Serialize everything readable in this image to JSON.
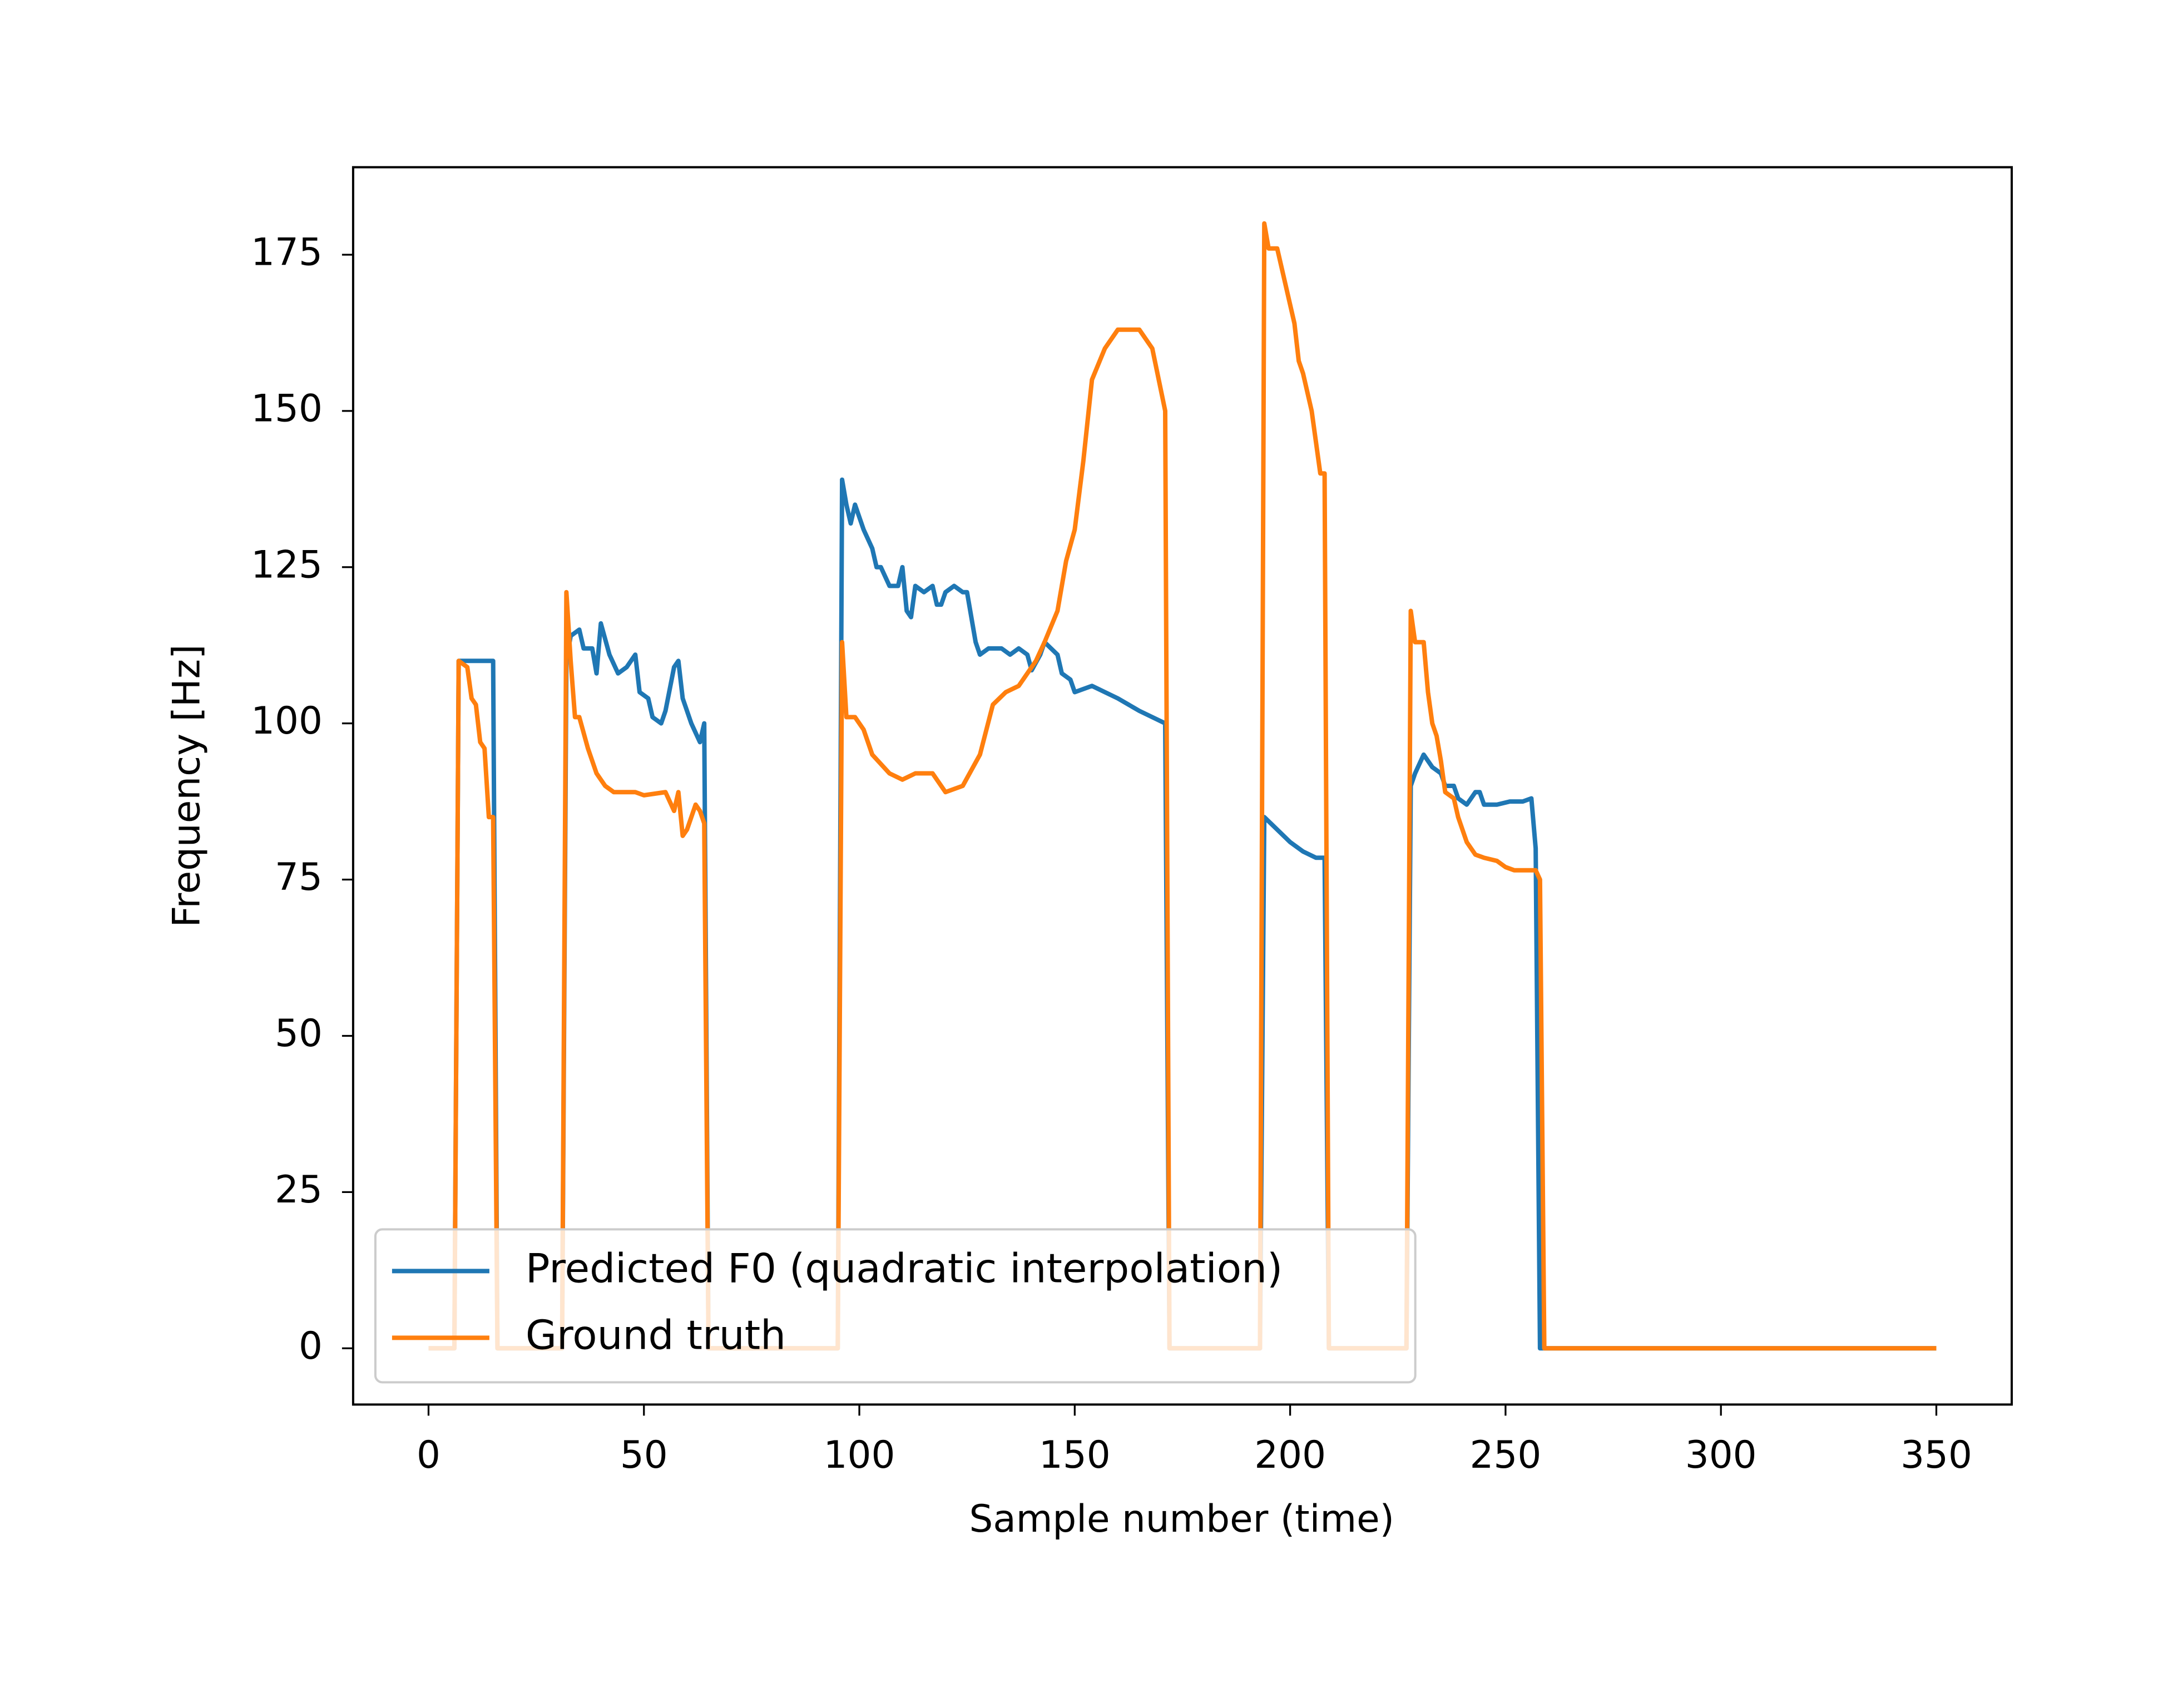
{
  "chart_data": {
    "type": "line",
    "xlabel": "Sample number (time)",
    "ylabel": "Frequency [Hz]",
    "xlim": [
      -17.5,
      367.5
    ],
    "ylim": [
      -9,
      189
    ],
    "xticks": [
      0,
      50,
      100,
      150,
      200,
      250,
      300,
      350
    ],
    "yticks": [
      0,
      25,
      50,
      75,
      100,
      125,
      150,
      175
    ],
    "grid": false,
    "legend": "lower left",
    "series": [
      {
        "name": "Predicted F0 (quadratic interpolation)",
        "color": "#1f77b4",
        "x": [
          0,
          6,
          7,
          15,
          16,
          31,
          32,
          33,
          35,
          36,
          38,
          39,
          40,
          42,
          44,
          46,
          48,
          49,
          51,
          52,
          54,
          55,
          57,
          58,
          59,
          61,
          63,
          64,
          65,
          95,
          96,
          97,
          98,
          99,
          101,
          103,
          104,
          105,
          107,
          109,
          110,
          111,
          112,
          113,
          115,
          117,
          118,
          119,
          120,
          122,
          124,
          125,
          127,
          128,
          130,
          133,
          135,
          137,
          139,
          140,
          142,
          143,
          146,
          147,
          149,
          150,
          152,
          154,
          160,
          165,
          171,
          172,
          193,
          194,
          197,
          200,
          203,
          206,
          208,
          209,
          227,
          228,
          229,
          231,
          233,
          235,
          236,
          238,
          239,
          241,
          243,
          244,
          245,
          246,
          248,
          251,
          254,
          256,
          257,
          258,
          350
        ],
        "values": [
          0,
          0,
          110,
          110,
          0,
          0,
          110,
          114,
          115,
          112,
          112,
          108,
          116,
          111,
          108,
          109,
          111,
          105,
          104,
          101,
          100,
          102,
          109,
          110,
          104,
          100,
          97,
          100,
          0,
          0,
          139,
          135,
          132,
          135,
          131,
          128,
          125,
          125,
          122,
          122,
          125,
          118,
          117,
          122,
          121,
          122,
          119,
          119,
          121,
          122,
          121,
          121,
          113,
          111,
          112,
          112,
          111,
          112,
          111,
          108.5,
          111,
          113,
          111,
          108,
          107,
          105,
          105.5,
          106,
          104,
          102,
          100,
          0,
          0,
          85,
          83,
          81,
          79.5,
          78.5,
          78.5,
          0,
          0,
          90,
          92,
          95,
          93,
          92,
          90,
          90,
          88,
          87,
          89,
          89,
          87,
          87,
          87,
          87.5,
          87.5,
          88,
          80,
          0,
          0
        ]
      },
      {
        "name": "Ground truth",
        "color": "#ff7f0e",
        "x": [
          0,
          6,
          7,
          9,
          10,
          11,
          12,
          13,
          14,
          15,
          16,
          31,
          32,
          33,
          34,
          35,
          37,
          39,
          41,
          43,
          48,
          50,
          55,
          57,
          58,
          59,
          60,
          62,
          63,
          64,
          65,
          95,
          96,
          97,
          99,
          101,
          103,
          107,
          110,
          113,
          117,
          120,
          124,
          128,
          131,
          134,
          137,
          141,
          143,
          146,
          148,
          150,
          152,
          154,
          157,
          160,
          165,
          168,
          171,
          172,
          193,
          194,
          195,
          197,
          199,
          200,
          201,
          202,
          203,
          205,
          206,
          207,
          208,
          209,
          227,
          228,
          229,
          231,
          232,
          233,
          234,
          235,
          236,
          238,
          239,
          240,
          241,
          242,
          243,
          245,
          248,
          250,
          252,
          257,
          258,
          259,
          350
        ],
        "values": [
          0,
          0,
          110,
          109,
          104,
          103,
          97,
          96,
          85,
          85,
          0,
          0,
          121,
          110,
          101,
          101,
          96,
          92,
          90,
          89,
          89,
          88.5,
          89,
          86,
          89,
          82,
          83,
          87,
          86,
          84,
          0,
          0,
          113,
          101,
          101,
          99,
          95,
          92,
          91,
          92,
          92,
          89,
          90,
          95,
          103,
          105,
          106,
          110,
          113,
          118,
          126,
          131,
          142,
          155,
          160,
          163,
          163,
          160,
          150,
          0,
          0,
          180,
          176,
          176,
          170,
          167,
          164,
          158,
          156,
          150,
          145,
          140,
          140,
          0,
          0,
          118,
          113,
          113,
          105,
          100,
          98,
          94,
          89,
          88,
          85,
          83,
          81,
          80,
          79,
          78.5,
          78,
          77,
          76.5,
          76.5,
          75,
          0,
          0
        ]
      }
    ]
  }
}
